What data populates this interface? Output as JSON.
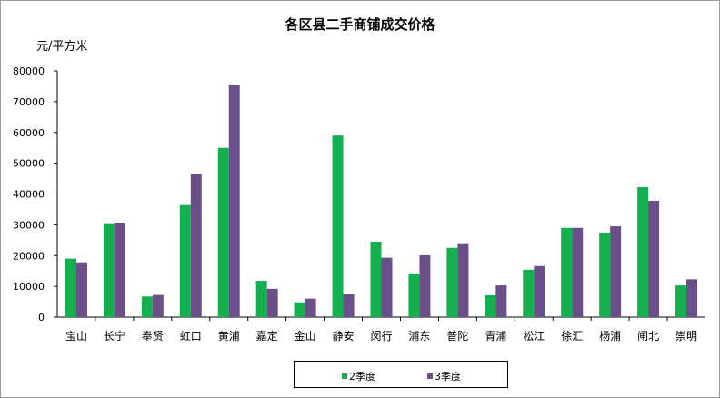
{
  "chart_data": {
    "type": "bar",
    "title": "各区县二手商铺成交价格",
    "ylabel": "元/平方米",
    "ylim": [
      0,
      80000
    ],
    "yticks": [
      "0",
      "10000",
      "20000",
      "30000",
      "40000",
      "50000",
      "60000",
      "70000",
      "80000"
    ],
    "grid": false,
    "legend_position": "bottom",
    "categories": [
      "宝山",
      "长宁",
      "奉贤",
      "虹口",
      "黄浦",
      "嘉定",
      "金山",
      "静安",
      "闵行",
      "浦东",
      "普陀",
      "青浦",
      "松江",
      "徐汇",
      "杨浦",
      "闸北",
      "崇明"
    ],
    "series": [
      {
        "name": "2季度",
        "color": "#14b050",
        "values": [
          19000,
          30500,
          6700,
          36400,
          55000,
          11800,
          4800,
          59000,
          24500,
          14200,
          22500,
          7100,
          15400,
          29000,
          27500,
          42200,
          10300
        ]
      },
      {
        "name": "3季度",
        "color": "#6b4f88",
        "values": [
          17800,
          30700,
          7200,
          46600,
          75500,
          9200,
          6000,
          7400,
          19300,
          20100,
          24000,
          10300,
          16600,
          29000,
          29500,
          37800,
          12300
        ]
      }
    ]
  }
}
